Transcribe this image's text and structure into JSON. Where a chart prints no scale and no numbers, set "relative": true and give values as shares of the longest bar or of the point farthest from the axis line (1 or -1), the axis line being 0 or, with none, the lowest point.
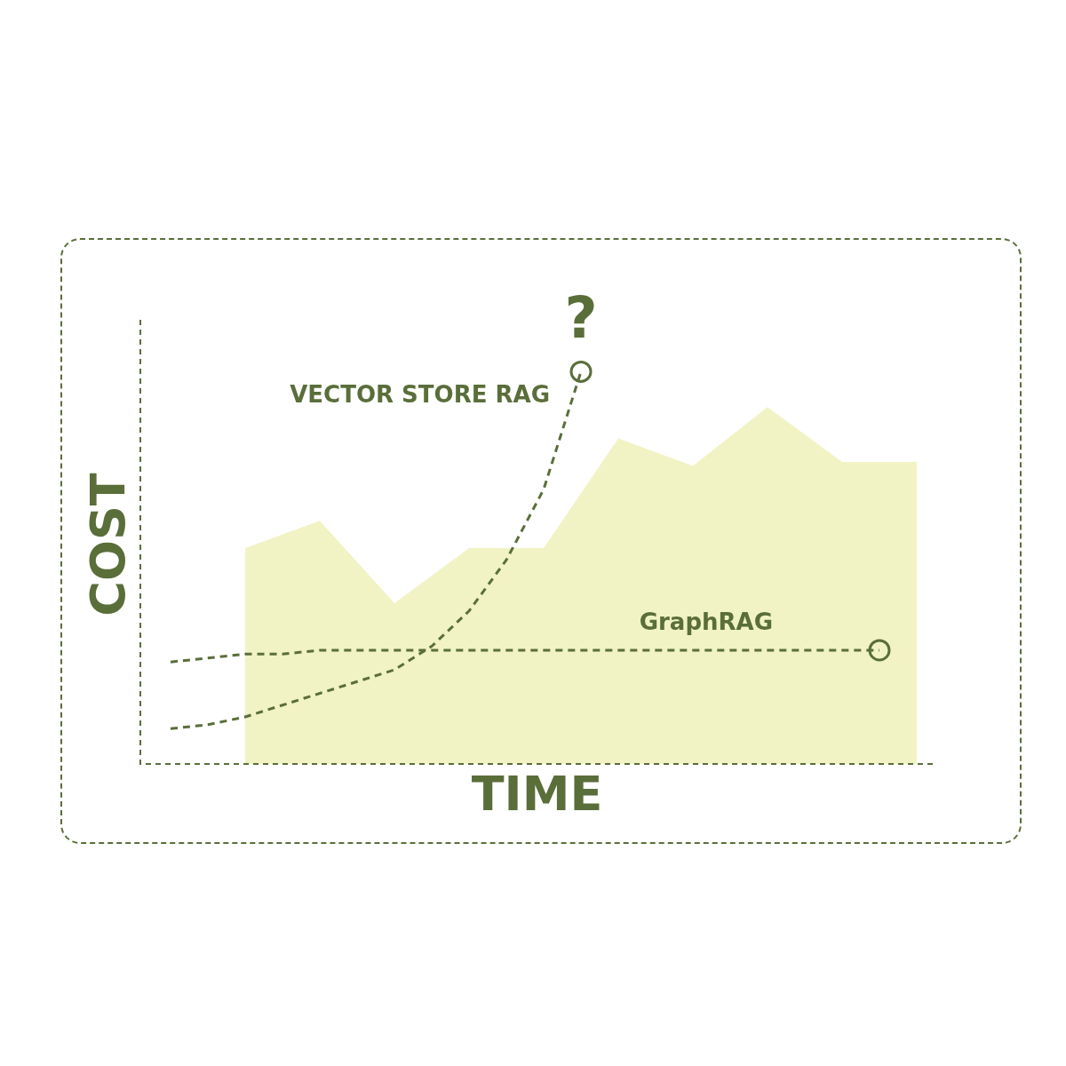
{
  "chart_data": {
    "type": "line",
    "relative": true,
    "xlabel": "TIME",
    "ylabel": "COST",
    "annotations": [
      "?"
    ],
    "legend": false,
    "categories": [
      null,
      null,
      null,
      null,
      null,
      null,
      null,
      null,
      null,
      null,
      null,
      null,
      null,
      null,
      null,
      null,
      null,
      null,
      null,
      null,
      null
    ],
    "series": [
      {
        "type": "area",
        "color": "#dbe06b",
        "values": [
          null,
          null,
          0.55,
          null,
          0.62,
          null,
          0.41,
          null,
          0.55,
          null,
          0.55,
          null,
          0.83,
          null,
          0.76,
          null,
          0.91,
          null,
          0.77,
          null,
          0.77
        ]
      },
      {
        "name": "VECTOR STORE RAG",
        "color": "#5a6e3a",
        "line_style": "dashed",
        "values": [
          0.09,
          0.1,
          0.12,
          0.15,
          0.18,
          0.21,
          0.24,
          0.3,
          0.39,
          0.52,
          0.7,
          1.0,
          null,
          null,
          null,
          null,
          null,
          null,
          null,
          null,
          null
        ]
      },
      {
        "name": "GraphRAG",
        "color": "#5a6e3a",
        "line_style": "dashed",
        "values": [
          0.26,
          0.27,
          0.28,
          0.28,
          0.29,
          0.29,
          0.29,
          0.29,
          0.29,
          0.29,
          0.29,
          0.29,
          0.29,
          0.29,
          0.29,
          0.29,
          0.29,
          0.29,
          0.29,
          0.29,
          null
        ]
      }
    ]
  }
}
